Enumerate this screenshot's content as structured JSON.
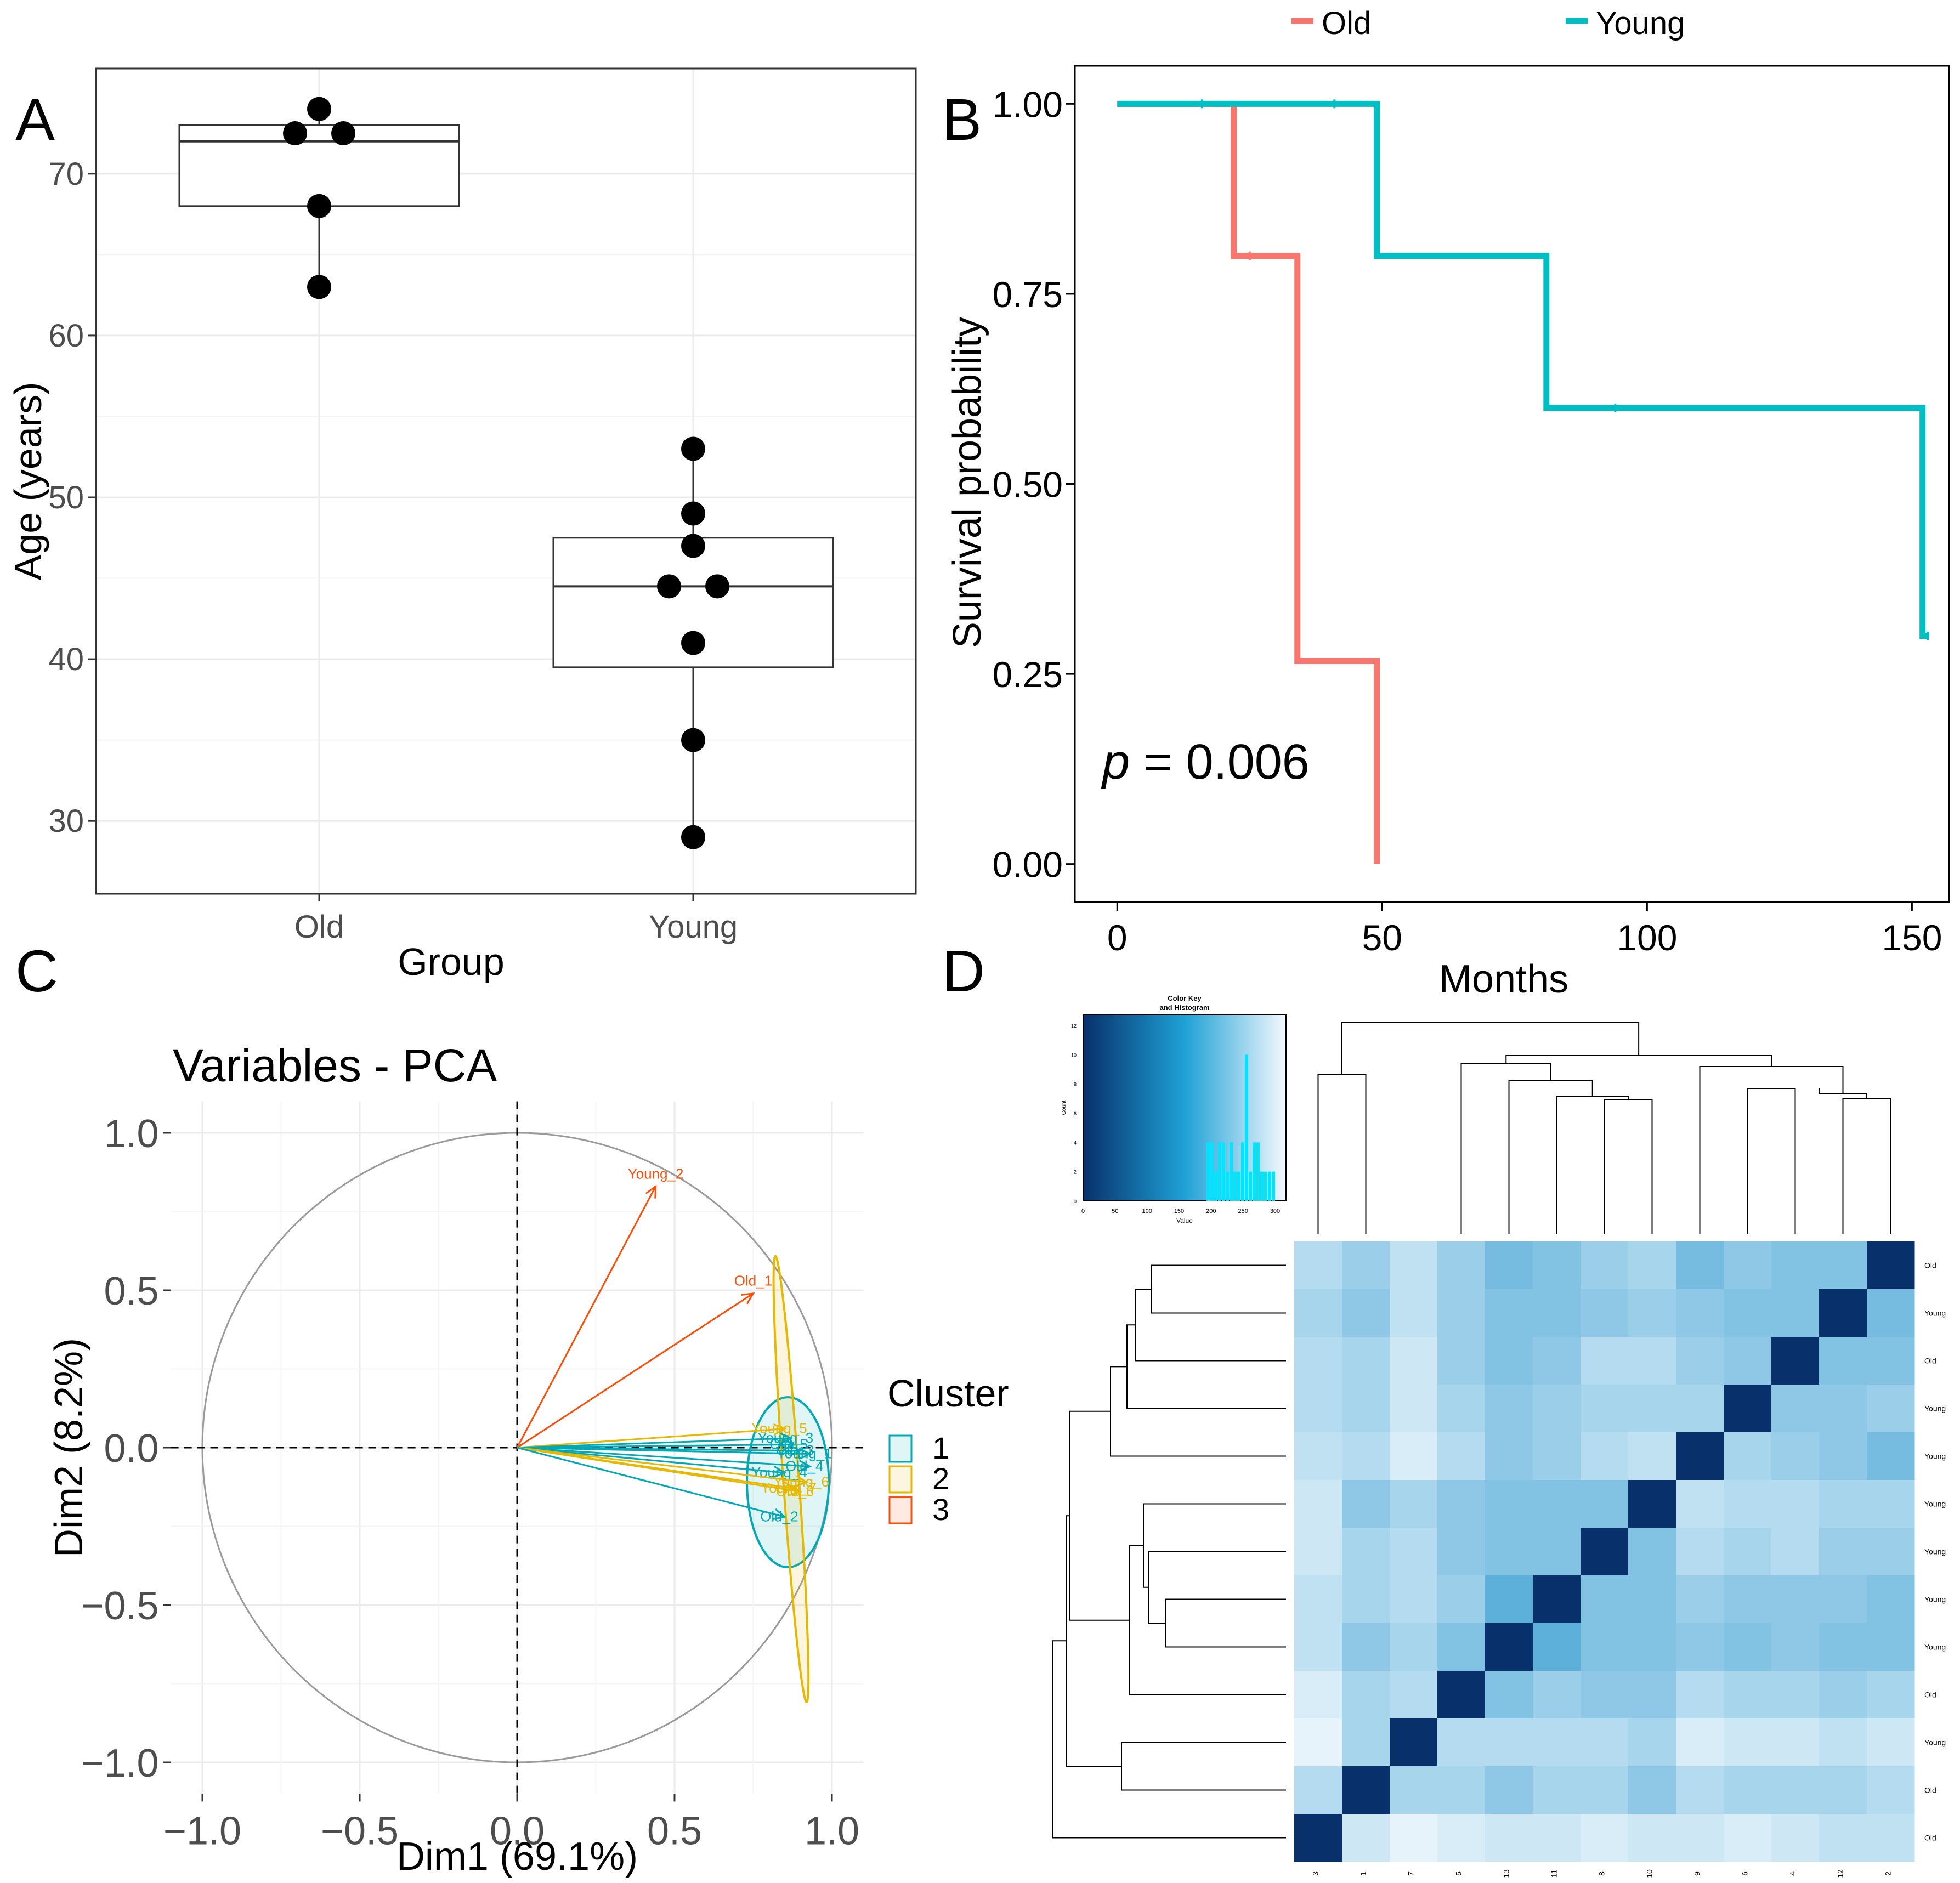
{
  "panels": {
    "A": {
      "letter": "A"
    },
    "B": {
      "letter": "B"
    },
    "C": {
      "letter": "C"
    },
    "D": {
      "letter": "D"
    }
  },
  "chart_data": [
    {
      "panel": "A",
      "type": "box",
      "title": "",
      "xlabel": "Group",
      "ylabel": "Age (years)",
      "ylim": [
        25.5,
        76.5
      ],
      "yticks": [
        30,
        40,
        50,
        60,
        70
      ],
      "categories": [
        "Old",
        "Young"
      ],
      "boxes": [
        {
          "category": "Old",
          "q1": 68,
          "median": 72,
          "q3": 73,
          "whisker_low": 63,
          "whisker_high": 74
        },
        {
          "category": "Young",
          "q1": 39.5,
          "median": 44.5,
          "q3": 47.5,
          "whisker_low": 29,
          "whisker_high": 53
        }
      ],
      "points": [
        {
          "category": "Old",
          "values": [
            74,
            72.5,
            72.5,
            68,
            63
          ],
          "offsets": [
            0,
            -1,
            1,
            0,
            0
          ]
        },
        {
          "category": "Young",
          "values": [
            53,
            49,
            47,
            44.5,
            44.5,
            41,
            35,
            29
          ],
          "offsets": [
            0,
            0,
            0,
            -1,
            1,
            0,
            0,
            0
          ]
        }
      ]
    },
    {
      "panel": "B",
      "type": "line",
      "title": "",
      "xlabel": "Months",
      "ylabel": "Survival probability",
      "xlim": [
        -8,
        157
      ],
      "ylim": [
        -0.05,
        1.05
      ],
      "xticks": [
        0,
        50,
        100,
        150
      ],
      "yticks": [
        0.0,
        0.25,
        0.5,
        0.75,
        1.0
      ],
      "ytick_labels": [
        "0.00",
        "0.25",
        "0.50",
        "0.75",
        "1.00"
      ],
      "legend_position": "top",
      "annotation": {
        "label": "p",
        "text": " = 0.006"
      },
      "series": [
        {
          "name": "Old",
          "color": "#f8766d",
          "x": [
            0,
            22,
            22,
            34,
            34,
            49,
            49
          ],
          "y": [
            1.0,
            1.0,
            0.8,
            0.8,
            0.267,
            0.267,
            0.0
          ],
          "censor": [
            [
              25,
              0.8
            ]
          ]
        },
        {
          "name": "Young",
          "color": "#00bfc4",
          "x": [
            0,
            49,
            49,
            81,
            81,
            152,
            152,
            153
          ],
          "y": [
            1.0,
            1.0,
            0.8,
            0.8,
            0.6,
            0.6,
            0.3,
            0.3
          ],
          "censor": [
            [
              16,
              1.0
            ],
            [
              41,
              1.0
            ],
            [
              94,
              0.6
            ],
            [
              153,
              0.3
            ]
          ]
        }
      ]
    },
    {
      "panel": "C",
      "type": "scatter",
      "title": "Variables - PCA",
      "xlabel": "Dim1 (69.1%)",
      "ylabel": "Dim2 (8.2%)",
      "xlim": [
        -1.1,
        1.1
      ],
      "ylim": [
        -1.1,
        1.1
      ],
      "xticks": [
        -1.0,
        -0.5,
        0.0,
        0.5,
        1.0
      ],
      "yticks": [
        -1.0,
        -0.5,
        0.0,
        0.5,
        1.0
      ],
      "xtick_labels": [
        "−1.0",
        "−0.5",
        "0.0",
        "0.5",
        "1.0"
      ],
      "ytick_labels": [
        "−1.0",
        "−0.5",
        "0.0",
        "0.5",
        "1.0"
      ],
      "legend_title": "Cluster",
      "legend": [
        {
          "name": "1",
          "color": "#00a9b5"
        },
        {
          "name": "2",
          "color": "#e7b800"
        },
        {
          "name": "3",
          "color": "#fc4e07"
        }
      ],
      "arrows": [
        {
          "label": "Young_2",
          "x": 0.44,
          "y": 0.83,
          "cluster": 3
        },
        {
          "label": "Old_1",
          "x": 0.75,
          "y": 0.49,
          "cluster": 3
        },
        {
          "label": "Young_5",
          "x": 0.85,
          "y": 0.06,
          "cluster": 2
        },
        {
          "label": "Young_3",
          "x": 0.87,
          "y": 0.03,
          "cluster": 1
        },
        {
          "label": "Old_5",
          "x": 0.88,
          "y": 0.01,
          "cluster": 1
        },
        {
          "label": "Old_3",
          "x": 0.9,
          "y": -0.01,
          "cluster": 1
        },
        {
          "label": "Young_1",
          "x": 0.93,
          "y": -0.02,
          "cluster": 1
        },
        {
          "label": "Young_4",
          "x": 0.85,
          "y": -0.08,
          "cluster": 1
        },
        {
          "label": "Old_4",
          "x": 0.93,
          "y": -0.06,
          "cluster": 1
        },
        {
          "label": "Young_6",
          "x": 0.92,
          "y": -0.11,
          "cluster": 2
        },
        {
          "label": "Young_7",
          "x": 0.88,
          "y": -0.13,
          "cluster": 2
        },
        {
          "label": "Old_6",
          "x": 0.9,
          "y": -0.14,
          "cluster": 2
        },
        {
          "label": "Old_2",
          "x": 0.85,
          "y": -0.22,
          "cluster": 1
        }
      ],
      "ellipses": [
        {
          "cluster": 1,
          "cx": 0.86,
          "cy": -0.11,
          "rx": 0.13,
          "ry": 0.27,
          "angle": 0
        },
        {
          "cluster": 2,
          "cx": 0.87,
          "cy": -0.1,
          "rx": 0.025,
          "ry": 0.71,
          "angle": -4
        }
      ]
    },
    {
      "panel": "D",
      "type": "heatmap",
      "title": "",
      "color_key_title": "Color Key",
      "color_key_subtitle": "and Histogram",
      "color_key_xlabel": "Value",
      "color_key_ylabel": "Count",
      "color_key_xticks": [
        "0",
        "50",
        "100",
        "150",
        "200",
        "250",
        "300"
      ],
      "color_key_yticks": [
        "0",
        "2",
        "4",
        "6",
        "8",
        "10",
        "12"
      ],
      "histogram_counts": [
        4,
        4,
        2,
        4,
        4,
        2,
        4,
        2,
        2,
        4,
        10,
        2,
        4,
        4,
        2,
        2,
        2,
        2
      ],
      "col_labels": [
        "3",
        "1",
        "7",
        "5",
        "13",
        "11",
        "8",
        "10",
        "9",
        "6",
        "4",
        "12",
        "2"
      ],
      "row_labels": [
        "Old",
        "Young",
        "Old",
        "Young",
        "Young",
        "Young",
        "Young",
        "Young",
        "Young",
        "Old",
        "Young",
        "Old",
        "Old"
      ],
      "diagonal_color": "#08306b",
      "values": [
        [
          0.35,
          0.45,
          0.3,
          0.45,
          0.6,
          0.55,
          0.45,
          0.4,
          0.6,
          0.5,
          0.55,
          0.55,
          1.0
        ],
        [
          0.4,
          0.5,
          0.3,
          0.45,
          0.55,
          0.55,
          0.5,
          0.45,
          0.5,
          0.55,
          0.55,
          1.0,
          0.6
        ],
        [
          0.35,
          0.4,
          0.25,
          0.45,
          0.55,
          0.5,
          0.35,
          0.35,
          0.45,
          0.5,
          1.0,
          0.55,
          0.55
        ],
        [
          0.35,
          0.4,
          0.25,
          0.4,
          0.5,
          0.45,
          0.4,
          0.4,
          0.4,
          1.0,
          0.5,
          0.5,
          0.45
        ],
        [
          0.3,
          0.35,
          0.2,
          0.35,
          0.5,
          0.45,
          0.35,
          0.3,
          1.0,
          0.4,
          0.45,
          0.5,
          0.6
        ],
        [
          0.25,
          0.5,
          0.4,
          0.5,
          0.55,
          0.55,
          0.55,
          1.0,
          0.3,
          0.35,
          0.35,
          0.4,
          0.4
        ],
        [
          0.25,
          0.4,
          0.35,
          0.5,
          0.55,
          0.55,
          1.0,
          0.55,
          0.35,
          0.4,
          0.35,
          0.45,
          0.45
        ],
        [
          0.3,
          0.4,
          0.35,
          0.45,
          0.7,
          1.0,
          0.55,
          0.55,
          0.45,
          0.5,
          0.5,
          0.5,
          0.55
        ],
        [
          0.3,
          0.5,
          0.4,
          0.55,
          1.0,
          0.7,
          0.55,
          0.55,
          0.5,
          0.55,
          0.5,
          0.55,
          0.55
        ],
        [
          0.2,
          0.4,
          0.35,
          1.0,
          0.55,
          0.45,
          0.5,
          0.5,
          0.35,
          0.4,
          0.4,
          0.45,
          0.4
        ],
        [
          0.15,
          0.4,
          1.0,
          0.35,
          0.35,
          0.35,
          0.35,
          0.4,
          0.2,
          0.25,
          0.25,
          0.3,
          0.25
        ],
        [
          0.35,
          1.0,
          0.4,
          0.4,
          0.5,
          0.4,
          0.4,
          0.5,
          0.35,
          0.4,
          0.4,
          0.4,
          0.35
        ],
        [
          1.0,
          0.25,
          0.15,
          0.2,
          0.25,
          0.25,
          0.2,
          0.25,
          0.25,
          0.2,
          0.25,
          0.3,
          0.3
        ]
      ]
    }
  ]
}
